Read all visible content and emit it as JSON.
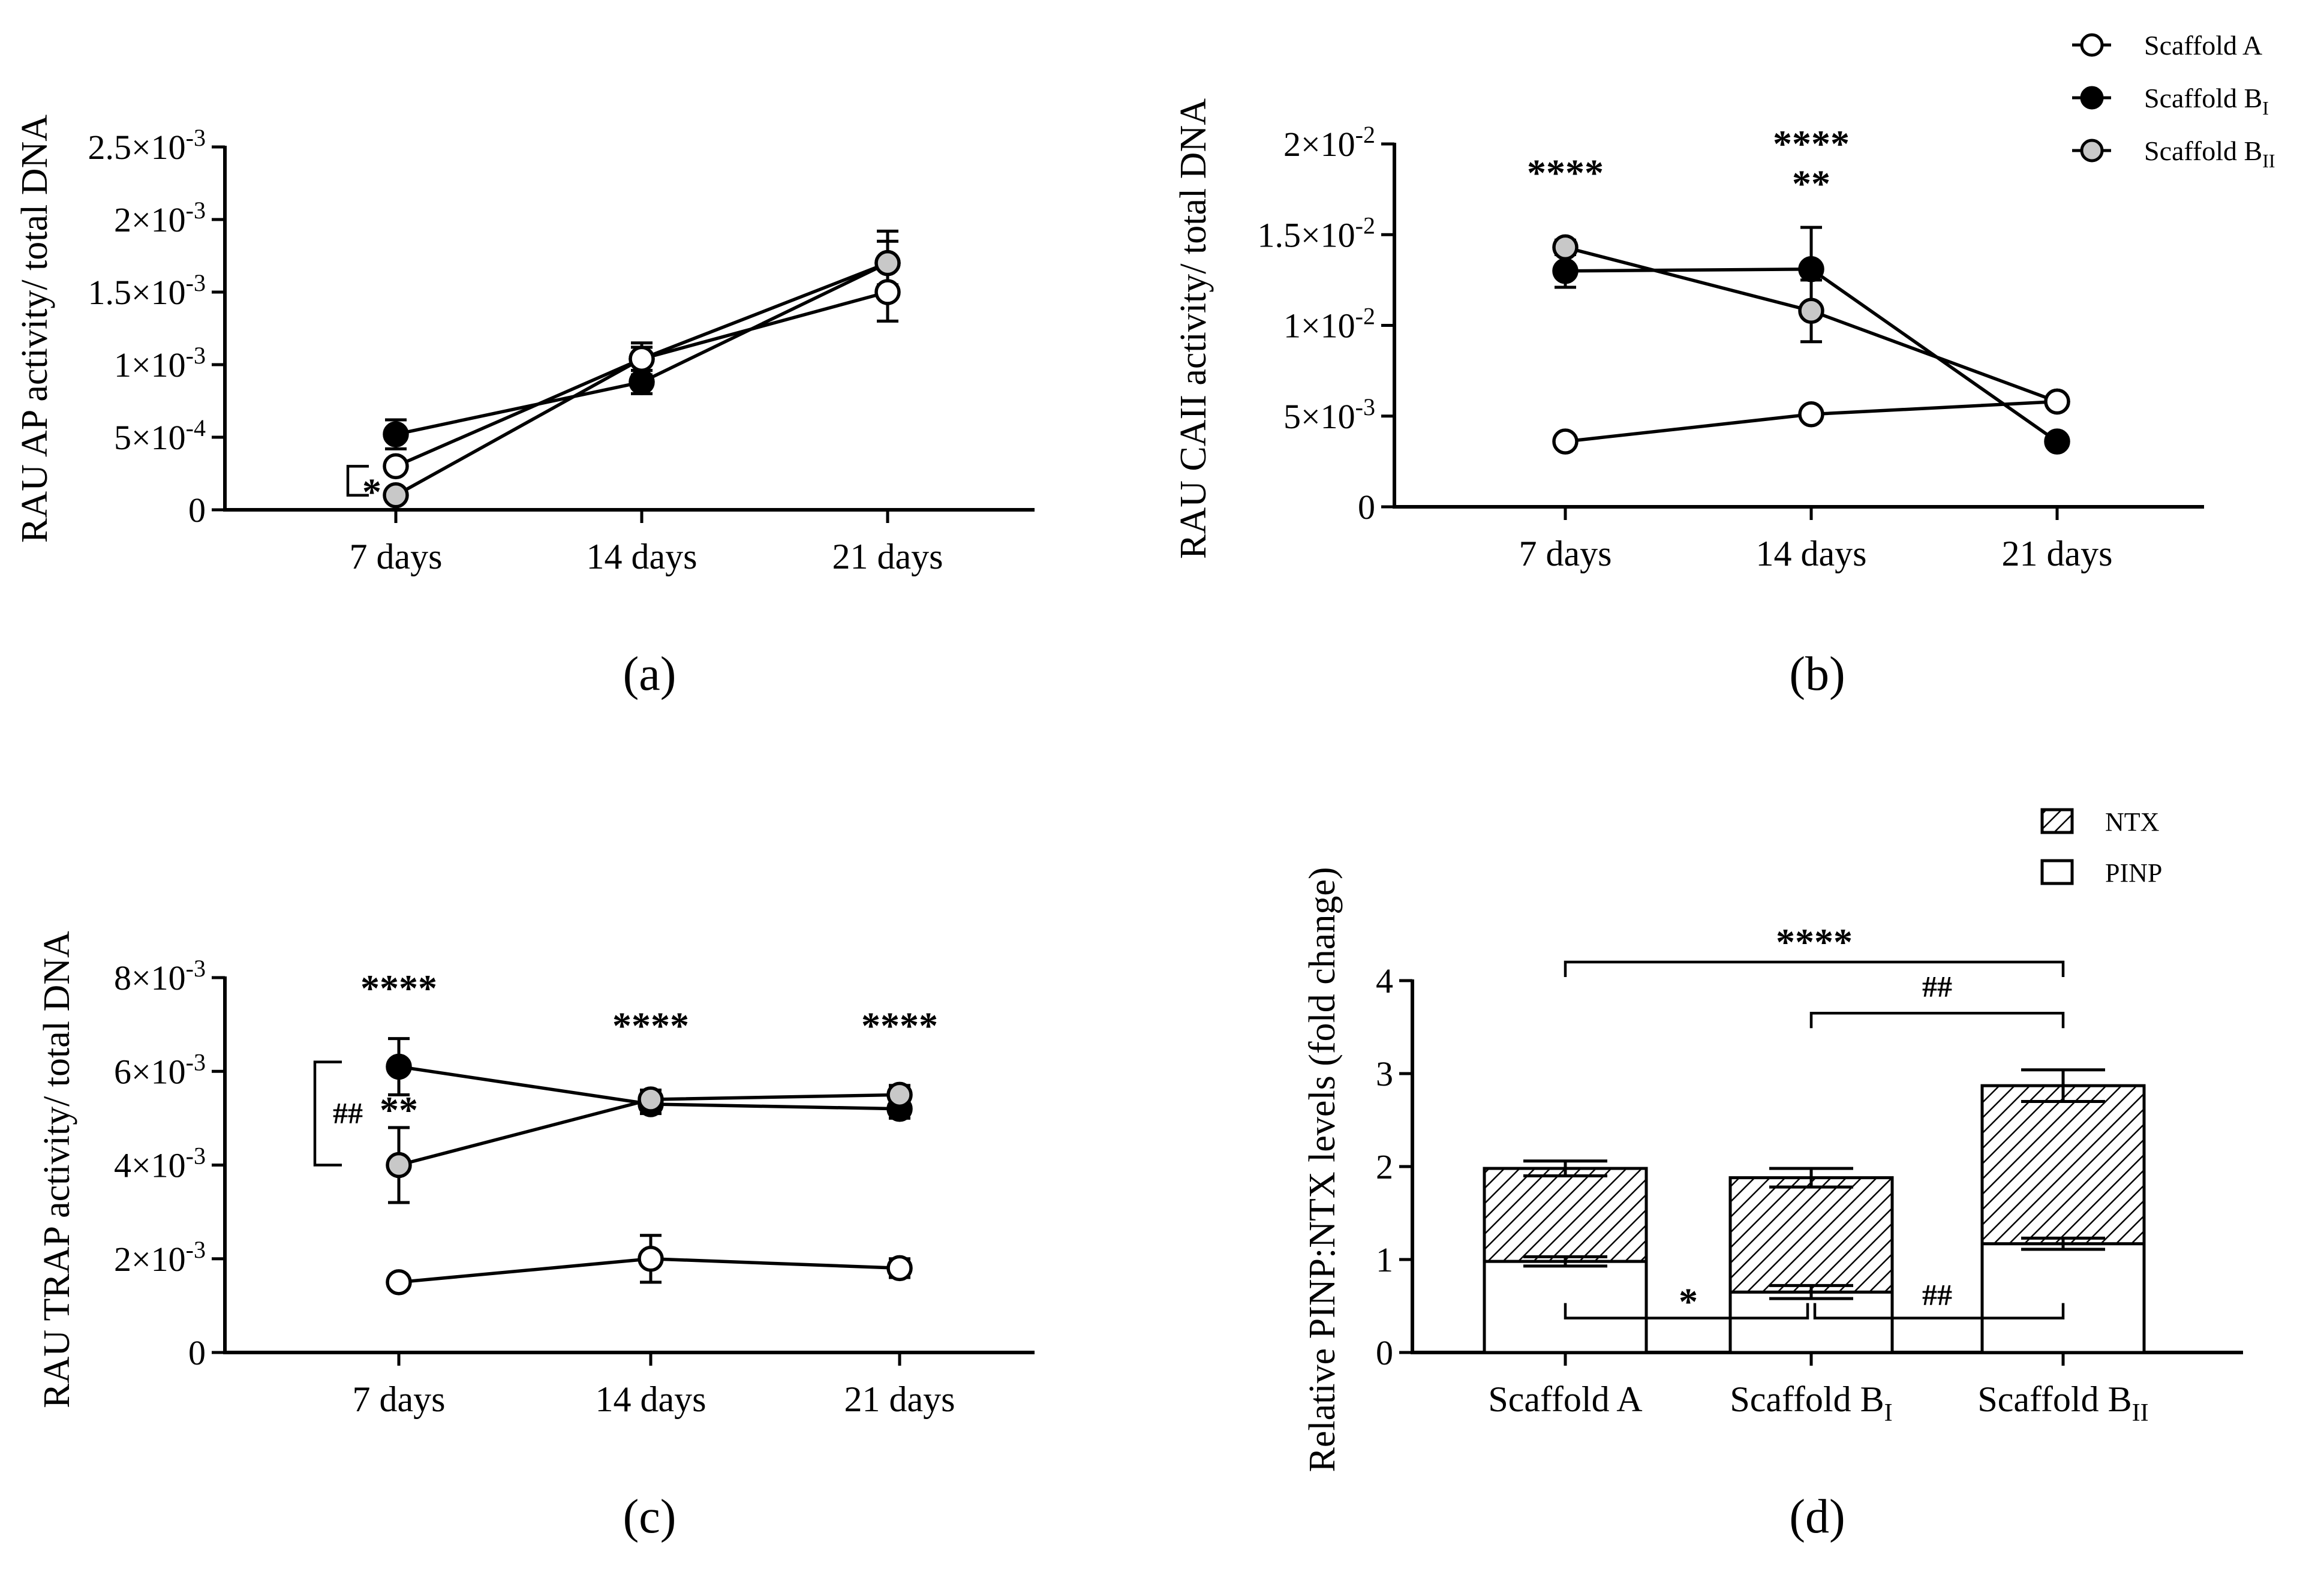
{
  "chart_data": [
    {
      "id": "a",
      "panel_label": "(a)",
      "type": "line",
      "ylabel": "RAU AP activity/ total DNA",
      "categories": [
        "7 days",
        "14 days",
        "21 days"
      ],
      "ylim": [
        0,
        0.0025
      ],
      "ytick_labels": [
        {
          "v": 0,
          "m": "0",
          "e": ""
        },
        {
          "v": 0.0005,
          "m": "5×10",
          "e": "-4"
        },
        {
          "v": 0.001,
          "m": "1×10",
          "e": "-3"
        },
        {
          "v": 0.0015,
          "m": "1.5×10",
          "e": "-3"
        },
        {
          "v": 0.002,
          "m": "2×10",
          "e": "-3"
        },
        {
          "v": 0.0025,
          "m": "2.5×10",
          "e": "-3"
        }
      ],
      "series": [
        {
          "name": "Scaffold B_I",
          "fill": "#000000",
          "values": [
            0.00052,
            0.00088,
            0.0017
          ],
          "errors": [
            0.0001,
            8e-05,
            0.00022
          ]
        },
        {
          "name": "Scaffold B_II",
          "fill": "#c8c8c8",
          "values": [
            0.0001,
            0.00104,
            0.0017
          ],
          "errors": [
            3e-05,
            0.00011,
            0.00015
          ]
        },
        {
          "name": "Scaffold A",
          "fill": "#ffffff",
          "values": [
            0.0003,
            0.00104,
            0.0015
          ],
          "errors": [
            3e-05,
            8e-05,
            0.0002
          ]
        }
      ],
      "annotations": [
        {
          "text": "*",
          "kind": "bracket",
          "cat": 0,
          "y1": 0.0003,
          "y2": 0.0001
        }
      ]
    },
    {
      "id": "b",
      "panel_label": "(b)",
      "type": "line",
      "ylabel": "RAU CAII activity/ total DNA",
      "categories": [
        "7 days",
        "14 days",
        "21 days"
      ],
      "ylim": [
        0,
        0.02
      ],
      "ytick_labels": [
        {
          "v": 0,
          "m": "0",
          "e": ""
        },
        {
          "v": 0.005,
          "m": "5×10",
          "e": "-3"
        },
        {
          "v": 0.01,
          "m": "1×10",
          "e": "-2"
        },
        {
          "v": 0.015,
          "m": "1.5×10",
          "e": "-2"
        },
        {
          "v": 0.02,
          "m": "2×10",
          "e": "-2"
        }
      ],
      "series": [
        {
          "name": "Scaffold B_I",
          "fill": "#000000",
          "values": [
            0.013,
            0.0131,
            0.0036
          ],
          "errors": [
            0.0009,
            0.0023,
            0.0003
          ]
        },
        {
          "name": "Scaffold B_II",
          "fill": "#c8c8c8",
          "values": [
            0.0143,
            0.0108,
            0.0058
          ],
          "errors": [
            0.0004,
            0.0017,
            0.0003
          ]
        },
        {
          "name": "Scaffold A",
          "fill": "#ffffff",
          "values": [
            0.0036,
            0.0051,
            0.0058
          ],
          "errors": [
            0.0002,
            0.0003,
            0.0003
          ]
        }
      ],
      "annotations": [
        {
          "text": "****",
          "cat": 0,
          "y": 0.0177
        },
        {
          "text": "****",
          "cat": 1,
          "y": 0.0193
        },
        {
          "text": "**",
          "cat": 1,
          "y": 0.0171
        }
      ]
    },
    {
      "id": "c",
      "panel_label": "(c)",
      "type": "line",
      "ylabel": "RAU TRAP activity/ total DNA",
      "categories": [
        "7 days",
        "14 days",
        "21 days"
      ],
      "ylim": [
        0,
        0.008
      ],
      "ytick_labels": [
        {
          "v": 0,
          "m": "0",
          "e": ""
        },
        {
          "v": 0.002,
          "m": "2×10",
          "e": "-3"
        },
        {
          "v": 0.004,
          "m": "4×10",
          "e": "-3"
        },
        {
          "v": 0.006,
          "m": "6×10",
          "e": "-3"
        },
        {
          "v": 0.008,
          "m": "8×10",
          "e": "-3"
        }
      ],
      "series": [
        {
          "name": "Scaffold B_I",
          "fill": "#000000",
          "values": [
            0.0061,
            0.0053,
            0.0052
          ],
          "errors": [
            0.0006,
            0.0002,
            0.0002
          ]
        },
        {
          "name": "Scaffold B_II",
          "fill": "#c8c8c8",
          "values": [
            0.004,
            0.0054,
            0.0055
          ],
          "errors": [
            0.0008,
            0.0002,
            0.0002
          ]
        },
        {
          "name": "Scaffold A",
          "fill": "#ffffff",
          "values": [
            0.0015,
            0.002,
            0.0018
          ],
          "errors": [
            0.0001,
            0.0005,
            0.0002
          ]
        }
      ],
      "annotations": [
        {
          "text": "****",
          "cat": 0,
          "y": 0.0075
        },
        {
          "text": "**",
          "cat": 0,
          "y": 0.0049
        },
        {
          "text": "****",
          "cat": 1,
          "y": 0.0067
        },
        {
          "text": "****",
          "cat": 2,
          "y": 0.0067
        },
        {
          "text": "##",
          "kind": "bracket",
          "cat": 0,
          "y1": 0.0062,
          "y2": 0.004
        }
      ]
    },
    {
      "id": "d",
      "panel_label": "(d)",
      "type": "bar",
      "stacked": true,
      "ylabel": "Relative PINP:NTX levels (fold change)",
      "categories": [
        {
          "main": "Scaffold A",
          "sub": ""
        },
        {
          "main": "Scaffold B",
          "sub": "I"
        },
        {
          "main": "Scaffold B",
          "sub": "II"
        }
      ],
      "ylim": [
        0,
        4
      ],
      "ytick_labels": [
        {
          "v": 0,
          "m": "0",
          "e": ""
        },
        {
          "v": 1,
          "m": "1",
          "e": ""
        },
        {
          "v": 2,
          "m": "2",
          "e": ""
        },
        {
          "v": 3,
          "m": "3",
          "e": ""
        },
        {
          "v": 4,
          "m": "4",
          "e": ""
        }
      ],
      "series": [
        {
          "name": "PINP",
          "pattern": "none",
          "values": [
            0.98,
            0.65,
            1.17
          ],
          "errors": [
            0.05,
            0.07,
            0.06
          ]
        },
        {
          "name": "NTX",
          "pattern": "hatch",
          "values": [
            1.0,
            1.23,
            1.7
          ],
          "errors": [
            0.08,
            0.1,
            0.17
          ]
        }
      ],
      "annotations": [
        {
          "text": "****",
          "from": 0,
          "to": 2,
          "y": 4.2
        },
        {
          "text": "##",
          "from": 1,
          "to": 2,
          "y": 3.65
        },
        {
          "text": "*",
          "from": 0,
          "to": 1,
          "y": 0.37
        },
        {
          "text": "##",
          "from": 1,
          "to": 2,
          "y": 0.37
        }
      ]
    }
  ],
  "legend_top": [
    {
      "main": "Scaffold A",
      "sub": "",
      "fill": "#ffffff"
    },
    {
      "main": "Scaffold B",
      "sub": "I",
      "fill": "#000000"
    },
    {
      "main": "Scaffold B",
      "sub": "II",
      "fill": "#c8c8c8"
    }
  ],
  "legend_d": [
    {
      "label": "NTX",
      "pattern": "hatch"
    },
    {
      "label": "PINP",
      "pattern": "none"
    }
  ]
}
